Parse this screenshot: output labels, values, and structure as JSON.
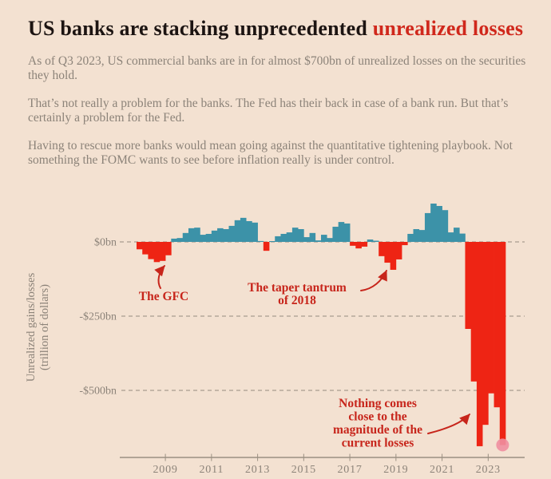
{
  "title": {
    "black": "US banks are stacking unprecedented ",
    "red": "unrealized losses"
  },
  "paragraphs": [
    "As of Q3 2023, US commercial banks are in for almost $700bn of unrealized losses on the securities they hold.",
    "That’s not really a problem for the banks. The Fed has their back in case of a bank run. But that’s certainly a problem for the Fed.",
    "Having to rescue more banks would mean going against the quantitative tightening playbook. Not something the FOMC wants to see before inflation really is under control."
  ],
  "chart_data": {
    "type": "bar",
    "title": "US banks unrealized gains/losses by quarter",
    "ylabel_line1": "Unrealized gains/losses",
    "ylabel_line2": "(trillion of dollars)",
    "unit": "billions of USD",
    "ytick_labels": [
      "$0bn",
      "-$250bn",
      "-$500bn"
    ],
    "ytick_values": [
      0,
      -250,
      -500
    ],
    "xtick_labels": [
      "2009",
      "2011",
      "2013",
      "2015",
      "2017",
      "2019",
      "2021",
      "2023"
    ],
    "quarters": [
      "2007Q4",
      "2008Q1",
      "2008Q2",
      "2008Q3",
      "2008Q4",
      "2009Q1",
      "2009Q2",
      "2009Q3",
      "2009Q4",
      "2010Q1",
      "2010Q2",
      "2010Q3",
      "2010Q4",
      "2011Q1",
      "2011Q2",
      "2011Q3",
      "2011Q4",
      "2012Q1",
      "2012Q2",
      "2012Q3",
      "2012Q4",
      "2013Q1",
      "2013Q2",
      "2013Q3",
      "2013Q4",
      "2014Q1",
      "2014Q2",
      "2014Q3",
      "2014Q4",
      "2015Q1",
      "2015Q2",
      "2015Q3",
      "2015Q4",
      "2016Q1",
      "2016Q2",
      "2016Q3",
      "2016Q4",
      "2017Q1",
      "2017Q2",
      "2017Q3",
      "2017Q4",
      "2018Q1",
      "2018Q2",
      "2018Q3",
      "2018Q4",
      "2019Q1",
      "2019Q2",
      "2019Q3",
      "2019Q4",
      "2020Q1",
      "2020Q2",
      "2020Q3",
      "2020Q4",
      "2021Q1",
      "2021Q2",
      "2021Q3",
      "2021Q4",
      "2022Q1",
      "2022Q2",
      "2022Q3",
      "2022Q4",
      "2023Q1",
      "2023Q2",
      "2023Q3"
    ],
    "values": [
      -25,
      -42,
      -58,
      -68,
      -64,
      -45,
      11,
      13,
      30,
      46,
      48,
      24,
      27,
      38,
      46,
      43,
      54,
      73,
      81,
      70,
      65,
      3,
      -30,
      2,
      19,
      27,
      32,
      48,
      43,
      16,
      30,
      5,
      24,
      13,
      51,
      67,
      62,
      -13,
      -22,
      -16,
      8,
      4,
      -48,
      -70,
      -94,
      -59,
      -11,
      27,
      43,
      40,
      97,
      129,
      121,
      107,
      32,
      48,
      28,
      -293,
      -470,
      -688,
      -616,
      -510,
      -557,
      -684
    ],
    "annotations": [
      {
        "id": "gfc",
        "lines": [
          "The GFC"
        ]
      },
      {
        "id": "taper",
        "lines": [
          "The taper tantrum",
          "of 2018"
        ]
      },
      {
        "id": "current",
        "lines": [
          "Nothing comes",
          "close to the",
          "magnitude of the",
          "current losses"
        ]
      }
    ],
    "highlight_dot": {
      "quarter": "2023Q3",
      "value": -684
    },
    "positive_color": "#3c92a8",
    "negative_color": "#ee2414",
    "dot_color": "#f08fa0",
    "accent_red": "#d0281c",
    "grid_on": true,
    "ylim": [
      -700,
      150
    ]
  }
}
